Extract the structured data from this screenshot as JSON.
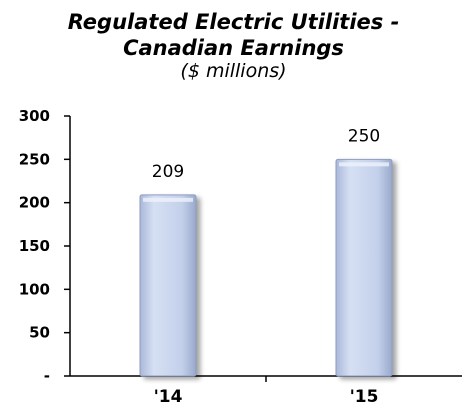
{
  "chart_data": {
    "type": "bar",
    "title_line1": "Regulated Electric Utilities -",
    "title_line2": "Canadian Earnings",
    "subtitle": "($ millions)",
    "categories": [
      "'14",
      "'15"
    ],
    "values": [
      209,
      250
    ],
    "data_labels": [
      "209",
      "250"
    ],
    "y_ticks": [
      0,
      50,
      100,
      150,
      200,
      250,
      300
    ],
    "y_tick_labels": [
      "-",
      "50",
      "100",
      "150",
      "200",
      "250",
      "300"
    ],
    "ylim": [
      0,
      300
    ],
    "grid": false,
    "bar_color": "#c9d6ee"
  }
}
